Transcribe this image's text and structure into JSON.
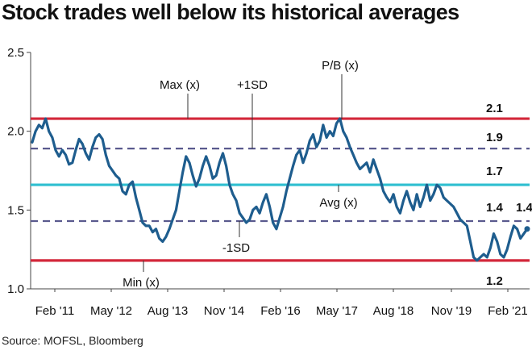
{
  "title": "Stock trades well below its historical averages",
  "source": "Source: MOFSL, Bloomberg",
  "colors": {
    "series": "#1e5d8e",
    "extreme": "#d3273a",
    "average": "#2fbfd0",
    "sd": "#5a5a8e",
    "axis": "#444444"
  },
  "chart_data": {
    "type": "line",
    "title": "Stock trades well below its historical averages",
    "ylabel": "P/B (x)",
    "xlabel": "",
    "ylim": [
      1.0,
      2.5
    ],
    "yticks": [
      "2.5",
      "2.0",
      "1.5",
      "1.0"
    ],
    "xticks": [
      "Feb '11",
      "May '12",
      "Aug '13",
      "Nov '14",
      "Feb '16",
      "May '17",
      "Aug '18",
      "Nov '19",
      "Feb '21"
    ],
    "series": [
      {
        "name": "P/B (x)",
        "values": [
          1.93,
          2.0,
          2.04,
          2.02,
          2.08,
          2.0,
          1.96,
          1.88,
          1.84,
          1.88,
          1.85,
          1.79,
          1.8,
          1.88,
          1.95,
          1.92,
          1.86,
          1.82,
          1.9,
          1.96,
          1.98,
          1.95,
          1.85,
          1.78,
          1.75,
          1.72,
          1.7,
          1.62,
          1.6,
          1.66,
          1.68,
          1.58,
          1.5,
          1.42,
          1.4,
          1.4,
          1.36,
          1.38,
          1.32,
          1.3,
          1.33,
          1.38,
          1.44,
          1.5,
          1.62,
          1.74,
          1.84,
          1.8,
          1.72,
          1.65,
          1.7,
          1.78,
          1.84,
          1.78,
          1.7,
          1.72,
          1.8,
          1.86,
          1.78,
          1.66,
          1.6,
          1.56,
          1.48,
          1.45,
          1.42,
          1.44,
          1.5,
          1.52,
          1.48,
          1.55,
          1.6,
          1.52,
          1.42,
          1.38,
          1.45,
          1.52,
          1.62,
          1.7,
          1.78,
          1.85,
          1.88,
          1.8,
          1.86,
          1.94,
          1.98,
          1.9,
          1.94,
          2.04,
          1.96,
          2.0,
          1.97,
          2.05,
          2.08,
          2.0,
          1.96,
          1.9,
          1.85,
          1.8,
          1.76,
          1.78,
          1.8,
          1.74,
          1.82,
          1.76,
          1.7,
          1.62,
          1.58,
          1.55,
          1.6,
          1.52,
          1.48,
          1.56,
          1.62,
          1.55,
          1.5,
          1.6,
          1.52,
          1.58,
          1.66,
          1.56,
          1.6,
          1.66,
          1.64,
          1.58,
          1.56,
          1.54,
          1.52,
          1.48,
          1.44,
          1.42,
          1.4,
          1.3,
          1.2,
          1.18,
          1.2,
          1.22,
          1.2,
          1.26,
          1.35,
          1.3,
          1.22,
          1.2,
          1.25,
          1.33,
          1.4,
          1.38,
          1.32,
          1.35,
          1.38
        ]
      }
    ],
    "reference_lines": [
      {
        "name": "Max (x)",
        "value": 2.08,
        "value_label": "2.1",
        "style": "solid",
        "color_key": "extreme"
      },
      {
        "name": "+1SD",
        "value": 1.89,
        "value_label": "1.9",
        "style": "dashed",
        "color_key": "sd"
      },
      {
        "name": "Avg (x)",
        "value": 1.66,
        "value_label": "1.7",
        "style": "solid",
        "color_key": "average"
      },
      {
        "name": "-1SD",
        "value": 1.43,
        "value_label": "1.4",
        "style": "dashed",
        "color_key": "sd"
      },
      {
        "name": "Min (x)",
        "value": 1.18,
        "value_label": "1.2",
        "style": "solid",
        "color_key": "extreme"
      }
    ],
    "end_label": "1.4",
    "legend": "inline-annotations"
  }
}
